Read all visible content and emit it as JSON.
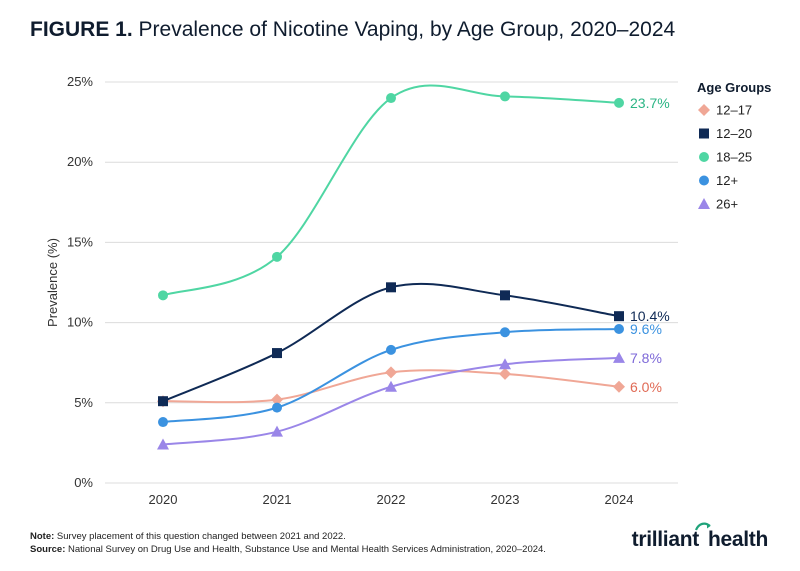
{
  "figure": {
    "label": "FIGURE 1.",
    "title": "Prevalence of Nicotine Vaping, by Age Group, 2020–2024"
  },
  "chart_data": {
    "type": "line",
    "x": [
      "2020",
      "2021",
      "2022",
      "2023",
      "2024"
    ],
    "ylabel": "Prevalence (%)",
    "ylim": [
      0,
      25
    ],
    "yticks": [
      "0%",
      "5%",
      "10%",
      "15%",
      "20%",
      "25%"
    ],
    "grid": true,
    "legend_title": "Age Groups",
    "legend_position": "right",
    "series": [
      {
        "name": "12–17",
        "values": [
          5.1,
          5.2,
          6.9,
          6.8,
          6.0
        ],
        "color": "#f0a796",
        "marker": "diamond",
        "end_label": "6.0%",
        "label_color": "#e06a55"
      },
      {
        "name": "12–20",
        "values": [
          5.1,
          8.1,
          12.2,
          11.7,
          10.4
        ],
        "color": "#0f2a55",
        "marker": "square",
        "end_label": "10.4%",
        "label_color": "#0f2a55"
      },
      {
        "name": "18–25",
        "values": [
          11.7,
          14.1,
          24.0,
          24.1,
          23.7
        ],
        "color": "#4fd6a3",
        "marker": "circle",
        "end_label": "23.7%",
        "label_color": "#2bb585"
      },
      {
        "name": "12+",
        "values": [
          3.8,
          4.7,
          8.3,
          9.4,
          9.6
        ],
        "color": "#3b92e0",
        "marker": "circle",
        "end_label": "9.6%",
        "label_color": "#3b92e0"
      },
      {
        "name": "26+",
        "values": [
          2.4,
          3.2,
          6.0,
          7.4,
          7.8
        ],
        "color": "#9a86e8",
        "marker": "triangle",
        "end_label": "7.8%",
        "label_color": "#7d68d8"
      }
    ]
  },
  "footnotes": {
    "note_label": "Note:",
    "note_text": " Survey placement of this question changed between 2021 and 2022.",
    "source_label": "Source:",
    "source_text": " National Survey on Drug Use and Health, Substance Use and Mental Health Services Administration, 2020–2024."
  },
  "branding": {
    "logo_text_a": "trilliant",
    "logo_text_b": "health"
  }
}
